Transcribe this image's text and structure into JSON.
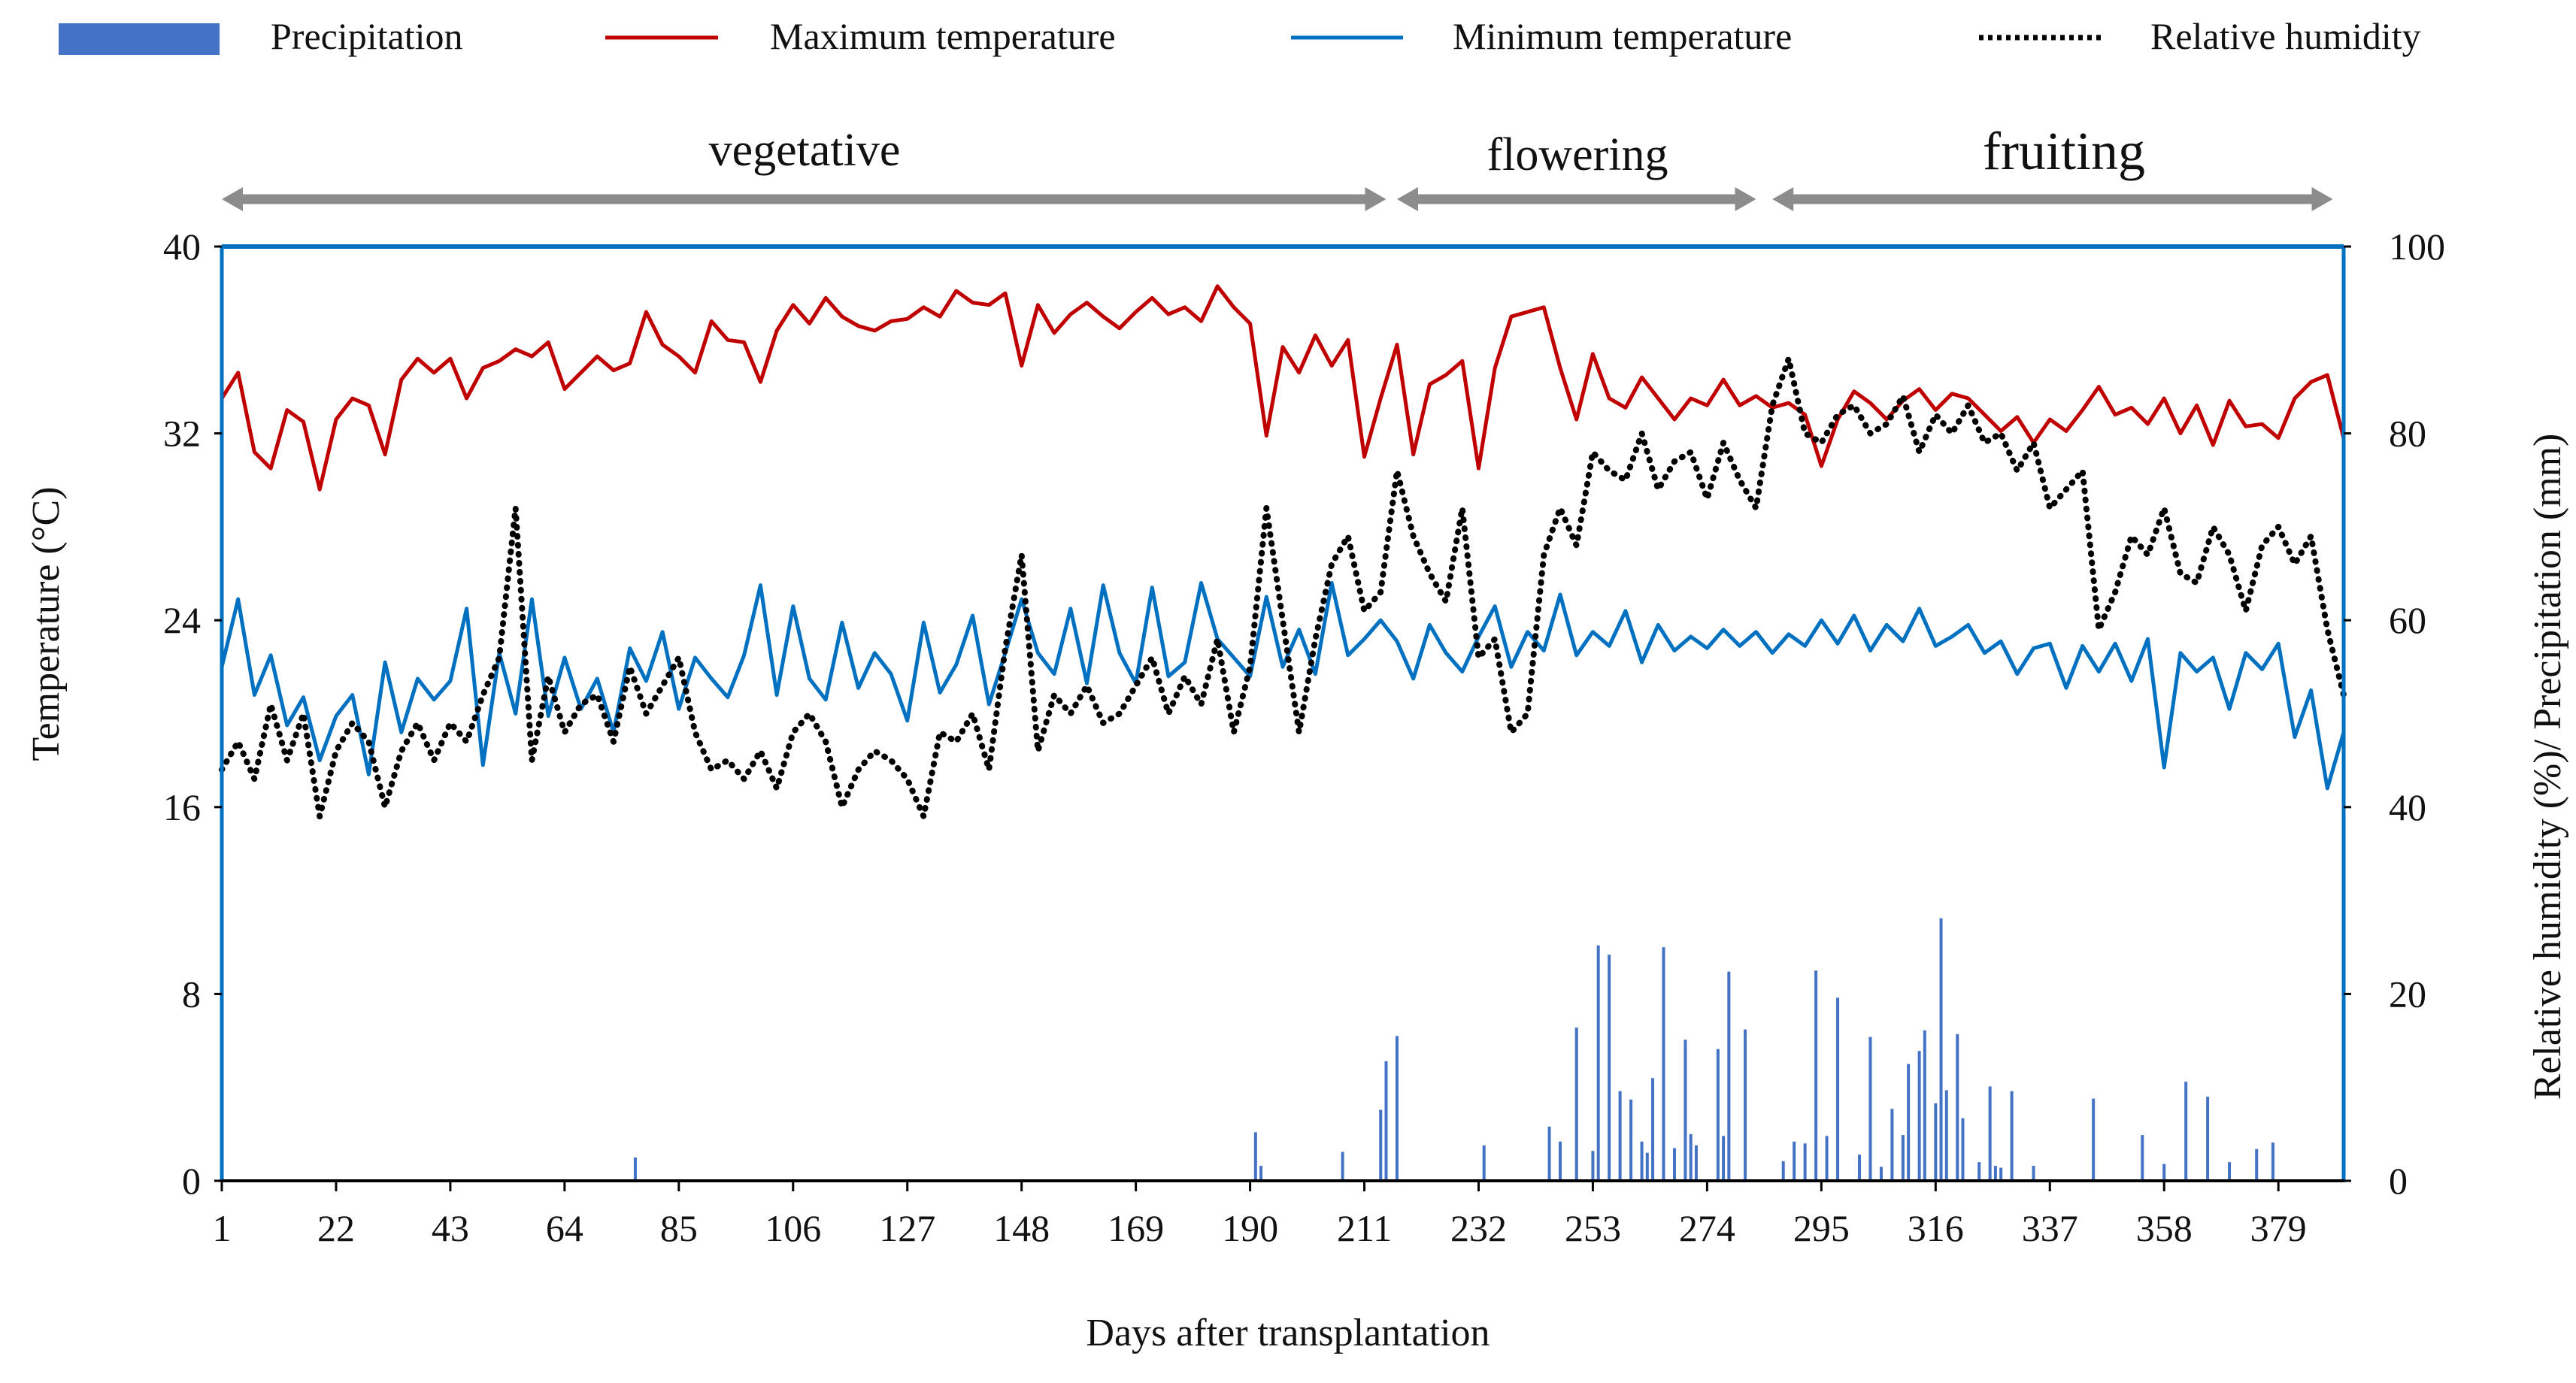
{
  "chart_data": {
    "type": "combo (bar + line)",
    "xlabel": "Days after transplantation",
    "ylabel_left": "Temperature (°C)",
    "ylabel_right": "Relative humidity (%)/ Precipitation (mm)",
    "xlim": [
      1,
      391
    ],
    "ylim_left": [
      0,
      40
    ],
    "ylim_right": [
      0,
      100
    ],
    "x_ticks": [
      "1",
      "22",
      "43",
      "64",
      "85",
      "106",
      "127",
      "148",
      "169",
      "190",
      "211",
      "232",
      "253",
      "274",
      "295",
      "316",
      "337",
      "358",
      "379"
    ],
    "y_ticks_left": [
      "0",
      "8",
      "16",
      "24",
      "32",
      "40"
    ],
    "y_ticks_right": [
      "0",
      "20",
      "40",
      "60",
      "80",
      "100"
    ],
    "legend": {
      "precipitation": "Precipitation",
      "max_temp": "Maximum temperature",
      "min_temp": "Minimum temperature",
      "humidity": "Relative humidity"
    },
    "colors": {
      "precipitation": "#4472C4",
      "max_temp": "#C00000",
      "min_temp": "#0070C0",
      "humidity": "#000000",
      "phase_arrow": "#8C8C8C",
      "axis": "#0070C0",
      "top_line": "#0070C0"
    },
    "phases": [
      {
        "label": "vegetative",
        "start": 1,
        "end": 215
      },
      {
        "label": "flowering",
        "start": 217,
        "end": 283
      },
      {
        "label": "fruiting",
        "start": 286,
        "end": 389
      }
    ],
    "series": [
      {
        "name": "Maximum temperature",
        "axis": "left",
        "x": [
          1,
          4,
          7,
          10,
          13,
          16,
          19,
          22,
          25,
          28,
          31,
          34,
          37,
          40,
          43,
          46,
          49,
          52,
          55,
          58,
          61,
          64,
          67,
          70,
          73,
          76,
          79,
          82,
          85,
          88,
          91,
          94,
          97,
          100,
          103,
          106,
          109,
          112,
          115,
          118,
          121,
          124,
          127,
          130,
          133,
          136,
          139,
          142,
          145,
          148,
          151,
          154,
          157,
          160,
          163,
          166,
          169,
          172,
          175,
          178,
          181,
          184,
          187,
          190,
          193,
          196,
          199,
          202,
          205,
          208,
          211,
          214,
          217,
          220,
          223,
          226,
          229,
          232,
          235,
          238,
          241,
          244,
          247,
          250,
          253,
          256,
          259,
          262,
          265,
          268,
          271,
          274,
          277,
          280,
          283,
          286,
          289,
          292,
          295,
          298,
          301,
          304,
          307,
          310,
          313,
          316,
          319,
          322,
          325,
          328,
          331,
          334,
          337,
          340,
          343,
          346,
          349,
          352,
          355,
          358,
          361,
          364,
          367,
          370,
          373,
          376,
          379,
          382,
          385,
          388,
          391
        ],
        "values": [
          33.5,
          34.6,
          31.2,
          30.5,
          33.0,
          32.5,
          29.6,
          32.6,
          33.5,
          33.2,
          31.1,
          34.3,
          35.2,
          34.6,
          35.2,
          33.5,
          34.8,
          35.1,
          35.6,
          35.3,
          35.9,
          33.9,
          34.6,
          35.3,
          34.7,
          35.0,
          37.2,
          35.8,
          35.3,
          34.6,
          36.8,
          36.0,
          35.9,
          34.2,
          36.4,
          37.5,
          36.7,
          37.8,
          37.0,
          36.6,
          36.4,
          36.8,
          36.9,
          37.4,
          37.0,
          38.1,
          37.6,
          37.5,
          38.0,
          34.9,
          37.5,
          36.3,
          37.1,
          37.6,
          37.0,
          36.5,
          37.2,
          37.8,
          37.1,
          37.4,
          36.8,
          38.3,
          37.4,
          36.7,
          31.9,
          35.7,
          34.6,
          36.2,
          34.9,
          36.0,
          31.0,
          33.5,
          35.8,
          31.1,
          34.1,
          34.5,
          35.1,
          30.5,
          34.8,
          37.0,
          37.2,
          37.4,
          34.8,
          32.6,
          35.4,
          33.5,
          33.1,
          34.4,
          33.5,
          32.6,
          33.5,
          33.2,
          34.3,
          33.2,
          33.6,
          33.1,
          33.3,
          32.8,
          30.6,
          32.6,
          33.8,
          33.3,
          32.6,
          33.4,
          33.9,
          33.0,
          33.7,
          33.5,
          32.8,
          32.1,
          32.7,
          31.6,
          32.6,
          32.1,
          33.0,
          34.0,
          32.8,
          33.1,
          32.4,
          33.5,
          32.0,
          33.2,
          31.5,
          33.4,
          32.3,
          32.4,
          31.8,
          33.5,
          34.2,
          34.5,
          31.8
        ]
      },
      {
        "name": "Minimum temperature",
        "axis": "left",
        "x": [
          1,
          4,
          7,
          10,
          13,
          16,
          19,
          22,
          25,
          28,
          31,
          34,
          37,
          40,
          43,
          46,
          49,
          52,
          55,
          58,
          61,
          64,
          67,
          70,
          73,
          76,
          79,
          82,
          85,
          88,
          91,
          94,
          97,
          100,
          103,
          106,
          109,
          112,
          115,
          118,
          121,
          124,
          127,
          130,
          133,
          136,
          139,
          142,
          145,
          148,
          151,
          154,
          157,
          160,
          163,
          166,
          169,
          172,
          175,
          178,
          181,
          184,
          187,
          190,
          193,
          196,
          199,
          202,
          205,
          208,
          211,
          214,
          217,
          220,
          223,
          226,
          229,
          232,
          235,
          238,
          241,
          244,
          247,
          250,
          253,
          256,
          259,
          262,
          265,
          268,
          271,
          274,
          277,
          280,
          283,
          286,
          289,
          292,
          295,
          298,
          301,
          304,
          307,
          310,
          313,
          316,
          319,
          322,
          325,
          328,
          331,
          334,
          337,
          340,
          343,
          346,
          349,
          352,
          355,
          358,
          361,
          364,
          367,
          370,
          373,
          376,
          379,
          382,
          385,
          388,
          391
        ],
        "values": [
          22.0,
          24.9,
          20.8,
          22.5,
          19.5,
          20.7,
          18.0,
          19.9,
          20.8,
          17.4,
          22.2,
          19.2,
          21.5,
          20.6,
          21.4,
          24.5,
          17.8,
          22.6,
          20.0,
          24.9,
          19.9,
          22.4,
          20.2,
          21.5,
          19.2,
          22.8,
          21.4,
          23.5,
          20.2,
          22.4,
          21.5,
          20.7,
          22.5,
          25.5,
          20.8,
          24.6,
          21.5,
          20.6,
          23.9,
          21.1,
          22.6,
          21.7,
          19.7,
          23.9,
          20.9,
          22.1,
          24.2,
          20.4,
          22.6,
          24.9,
          22.6,
          21.7,
          24.5,
          21.3,
          25.5,
          22.6,
          21.3,
          25.4,
          21.6,
          22.2,
          25.6,
          23.2,
          22.4,
          21.6,
          25.0,
          22.0,
          23.6,
          21.7,
          25.6,
          22.5,
          23.2,
          24.0,
          23.1,
          21.5,
          23.8,
          22.6,
          21.8,
          23.3,
          24.6,
          22.0,
          23.5,
          22.7,
          25.1,
          22.5,
          23.5,
          22.9,
          24.4,
          22.2,
          23.8,
          22.7,
          23.3,
          22.8,
          23.6,
          22.9,
          23.5,
          22.6,
          23.4,
          22.9,
          24.0,
          23.0,
          24.2,
          22.7,
          23.8,
          23.1,
          24.5,
          22.9,
          23.3,
          23.8,
          22.6,
          23.1,
          21.7,
          22.8,
          23.0,
          21.1,
          22.9,
          21.8,
          23.0,
          21.4,
          23.2,
          17.7,
          22.6,
          21.8,
          22.4,
          20.2,
          22.6,
          21.9,
          23.0,
          19.0,
          21.0,
          16.8,
          19.2
        ]
      },
      {
        "name": "Relative humidity",
        "axis": "right",
        "x": [
          1,
          4,
          7,
          10,
          13,
          16,
          19,
          22,
          25,
          28,
          31,
          34,
          37,
          40,
          43,
          46,
          49,
          52,
          55,
          58,
          61,
          64,
          67,
          70,
          73,
          76,
          79,
          82,
          85,
          88,
          91,
          94,
          97,
          100,
          103,
          106,
          109,
          112,
          115,
          118,
          121,
          124,
          127,
          130,
          133,
          136,
          139,
          142,
          145,
          148,
          151,
          154,
          157,
          160,
          163,
          166,
          169,
          172,
          175,
          178,
          181,
          184,
          187,
          190,
          193,
          196,
          199,
          202,
          205,
          208,
          211,
          214,
          217,
          220,
          223,
          226,
          229,
          232,
          235,
          238,
          241,
          244,
          247,
          250,
          253,
          256,
          259,
          262,
          265,
          268,
          271,
          274,
          277,
          280,
          283,
          286,
          289,
          292,
          295,
          298,
          301,
          304,
          307,
          310,
          313,
          316,
          319,
          322,
          325,
          328,
          331,
          334,
          337,
          340,
          343,
          346,
          349,
          352,
          355,
          358,
          361,
          364,
          367,
          370,
          373,
          376,
          379,
          382,
          385,
          388,
          391
        ],
        "values": [
          44,
          47,
          43,
          51,
          45,
          50,
          39,
          46,
          49,
          47,
          40,
          46,
          49,
          45,
          49,
          47,
          52,
          56,
          72,
          45,
          54,
          48,
          51,
          52,
          47,
          55,
          50,
          53,
          56,
          48,
          44,
          45,
          43,
          46,
          42,
          48,
          50,
          47,
          40,
          44,
          46,
          45,
          43,
          39,
          48,
          47,
          50,
          44,
          57,
          67,
          46,
          52,
          50,
          53,
          49,
          50,
          53,
          56,
          50,
          54,
          51,
          58,
          48,
          55,
          72,
          60,
          48,
          58,
          66,
          69,
          61,
          63,
          76,
          69,
          65,
          62,
          72,
          56,
          58,
          48,
          50,
          67,
          72,
          68,
          78,
          76,
          75,
          80,
          74,
          77,
          78,
          73,
          79,
          75,
          72,
          83,
          88,
          80,
          79,
          82,
          83,
          80,
          81,
          84,
          78,
          82,
          80,
          83,
          79,
          80,
          76,
          79,
          72,
          74,
          76,
          59,
          63,
          69,
          67,
          72,
          65,
          64,
          70,
          67,
          61,
          68,
          70,
          66,
          69,
          59,
          52
        ]
      },
      {
        "name": "Precipitation",
        "axis": "right",
        "type": "bar",
        "x": [
          77,
          191,
          192,
          207,
          214,
          215,
          217,
          233,
          245,
          247,
          250,
          253,
          254,
          256,
          258,
          260,
          262,
          263,
          264,
          266,
          268,
          270,
          271,
          272,
          276,
          277,
          278,
          281,
          288,
          290,
          292,
          294,
          296,
          298,
          302,
          304,
          306,
          308,
          310,
          311,
          313,
          314,
          316,
          317,
          318,
          320,
          321,
          324,
          326,
          327,
          328,
          330,
          334,
          345,
          354,
          358,
          362,
          366,
          370,
          375,
          378
        ],
        "values": [
          2.5,
          5.2,
          1.6,
          3.1,
          7.6,
          12.8,
          15.5,
          3.8,
          5.8,
          4.2,
          16.4,
          3.2,
          25.2,
          24.2,
          9.6,
          8.7,
          4.2,
          3.0,
          11.0,
          25.0,
          3.5,
          15.1,
          5.0,
          3.8,
          14.1,
          4.8,
          22.4,
          16.2,
          2.1,
          4.2,
          4.0,
          22.5,
          4.8,
          19.6,
          2.8,
          15.4,
          1.5,
          7.7,
          4.9,
          12.5,
          13.9,
          16.1,
          8.3,
          28.1,
          9.7,
          15.7,
          6.7,
          2.0,
          10.1,
          1.6,
          1.4,
          9.6,
          1.6,
          8.8,
          4.9,
          1.8,
          10.6,
          9.0,
          2.0,
          3.4,
          4.1
        ]
      }
    ]
  }
}
